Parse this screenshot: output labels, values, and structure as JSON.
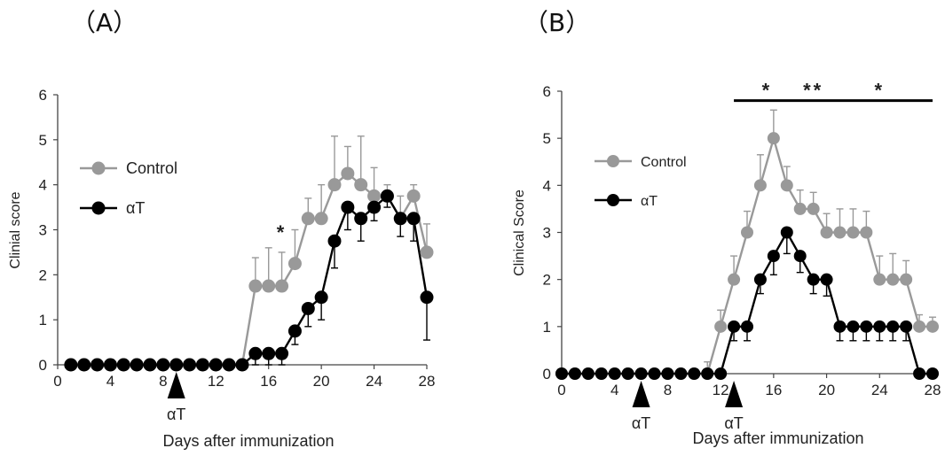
{
  "chart_data": [
    {
      "panel_label": "（A）",
      "type": "line",
      "xlabel": "Days after immunization",
      "ylabel": "Clinial score",
      "xlim": [
        0,
        28
      ],
      "ylim": [
        0,
        6
      ],
      "xticks": [
        0,
        4,
        8,
        12,
        16,
        20,
        24,
        28
      ],
      "yticks": [
        0,
        1,
        2,
        3,
        4,
        5,
        6
      ],
      "grid": false,
      "legend": "left",
      "treatment_marker": {
        "x": 9,
        "label": "αT"
      },
      "significance": [
        {
          "x": 17,
          "label": "*"
        }
      ],
      "series": [
        {
          "name": "Control",
          "color": "#999999",
          "x": [
            1,
            2,
            3,
            4,
            5,
            6,
            7,
            8,
            9,
            10,
            11,
            12,
            13,
            14,
            15,
            16,
            17,
            18,
            19,
            20,
            21,
            22,
            23,
            24,
            25,
            26,
            27,
            28
          ],
          "y": [
            0,
            0,
            0,
            0,
            0,
            0,
            0,
            0,
            0,
            0,
            0,
            0,
            0,
            0,
            1.75,
            1.75,
            1.75,
            2.25,
            3.25,
            3.25,
            4.0,
            4.25,
            4.0,
            3.75,
            3.75,
            3.25,
            3.75,
            2.5
          ],
          "error_up": [
            0,
            0,
            0,
            0,
            0,
            0,
            0,
            0,
            0,
            0,
            0,
            0,
            0,
            0,
            0.63,
            0.85,
            0.75,
            0.75,
            0.45,
            0.75,
            1.08,
            0.6,
            1.08,
            0.63,
            0.25,
            0.5,
            0.25,
            0.63
          ]
        },
        {
          "name": "αT",
          "color": "#000000",
          "x": [
            1,
            2,
            3,
            4,
            5,
            6,
            7,
            8,
            9,
            10,
            11,
            12,
            13,
            14,
            15,
            16,
            17,
            18,
            19,
            20,
            21,
            22,
            23,
            24,
            25,
            26,
            27,
            28
          ],
          "y": [
            0,
            0,
            0,
            0,
            0,
            0,
            0,
            0,
            0,
            0,
            0,
            0,
            0,
            0,
            0.25,
            0.25,
            0.25,
            0.75,
            1.25,
            1.5,
            2.75,
            3.5,
            3.25,
            3.5,
            3.75,
            3.25,
            3.25,
            1.5
          ],
          "error_down": [
            0,
            0,
            0,
            0,
            0,
            0,
            0,
            0,
            0,
            0,
            0,
            0,
            0,
            0,
            0.25,
            0.25,
            0.25,
            0.3,
            0.4,
            0.5,
            0.6,
            0.5,
            0.5,
            0.3,
            0.25,
            0.4,
            0.5,
            0.95
          ]
        }
      ]
    },
    {
      "panel_label": "（B）",
      "type": "line",
      "xlabel": "Days after immunization",
      "ylabel": "Clinical Score",
      "xlim": [
        0,
        28
      ],
      "ylim": [
        0,
        6
      ],
      "xticks": [
        0,
        4,
        8,
        12,
        16,
        20,
        24,
        28
      ],
      "yticks": [
        0,
        1,
        2,
        3,
        4,
        5,
        6
      ],
      "grid": false,
      "legend": "left",
      "treatment_markers": [
        {
          "x": 6,
          "label": "αT"
        },
        {
          "x": 13,
          "label": "αT"
        }
      ],
      "significance_bar": {
        "x_start": 13,
        "x_end": 28,
        "y": 5.8
      },
      "significance": [
        {
          "x": 15.5,
          "label": "*"
        },
        {
          "x": 19,
          "label": "**"
        },
        {
          "x": 24,
          "label": "*"
        }
      ],
      "series": [
        {
          "name": "Control",
          "color": "#999999",
          "x": [
            0,
            1,
            2,
            3,
            4,
            5,
            6,
            7,
            8,
            9,
            10,
            11,
            12,
            13,
            14,
            15,
            16,
            17,
            18,
            19,
            20,
            21,
            22,
            23,
            24,
            25,
            26,
            27,
            28
          ],
          "y": [
            0,
            0,
            0,
            0,
            0,
            0,
            0,
            0,
            0,
            0,
            0,
            0,
            1,
            2,
            3,
            4,
            5,
            4,
            3.5,
            3.5,
            3,
            3,
            3,
            3,
            2,
            2,
            2,
            1,
            1
          ],
          "error_up": [
            0,
            0,
            0,
            0,
            0,
            0,
            0,
            0,
            0,
            0,
            0,
            0.25,
            0.35,
            0.5,
            0.45,
            0.65,
            0.6,
            0.4,
            0.4,
            0.35,
            0.4,
            0.5,
            0.5,
            0.45,
            0.5,
            0.55,
            0.4,
            0.25,
            0.2
          ]
        },
        {
          "name": "αT",
          "color": "#000000",
          "x": [
            0,
            1,
            2,
            3,
            4,
            5,
            6,
            7,
            8,
            9,
            10,
            11,
            12,
            13,
            14,
            15,
            16,
            17,
            18,
            19,
            20,
            21,
            22,
            23,
            24,
            25,
            26,
            27,
            28
          ],
          "y": [
            0,
            0,
            0,
            0,
            0,
            0,
            0,
            0,
            0,
            0,
            0,
            0,
            0,
            1,
            1,
            2,
            2.5,
            3,
            2.5,
            2,
            2,
            1,
            1,
            1,
            1,
            1,
            1,
            0,
            0
          ],
          "error_down": [
            0,
            0,
            0,
            0,
            0,
            0,
            0,
            0,
            0,
            0,
            0,
            0,
            0,
            0.3,
            0.3,
            0.3,
            0.4,
            0.45,
            0.35,
            0.3,
            0.35,
            0.3,
            0.3,
            0.3,
            0.3,
            0.3,
            0.3,
            0,
            0
          ]
        }
      ]
    }
  ]
}
